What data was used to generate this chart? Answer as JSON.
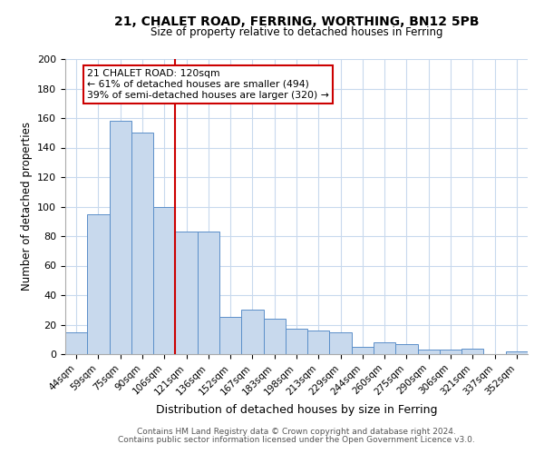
{
  "title1": "21, CHALET ROAD, FERRING, WORTHING, BN12 5PB",
  "title2": "Size of property relative to detached houses in Ferring",
  "xlabel": "Distribution of detached houses by size in Ferring",
  "ylabel": "Number of detached properties",
  "bar_labels": [
    "44sqm",
    "59sqm",
    "75sqm",
    "90sqm",
    "106sqm",
    "121sqm",
    "136sqm",
    "152sqm",
    "167sqm",
    "183sqm",
    "198sqm",
    "213sqm",
    "229sqm",
    "244sqm",
    "260sqm",
    "275sqm",
    "290sqm",
    "306sqm",
    "321sqm",
    "337sqm",
    "352sqm"
  ],
  "bar_values": [
    15,
    95,
    158,
    150,
    100,
    83,
    83,
    25,
    30,
    24,
    17,
    16,
    15,
    5,
    8,
    7,
    3,
    3,
    4,
    0,
    2
  ],
  "bar_color": "#c8d9ed",
  "bar_edge_color": "#5b8fc9",
  "vline_color": "#cc0000",
  "vline_index": 4.5,
  "annotation_title": "21 CHALET ROAD: 120sqm",
  "annotation_line1": "← 61% of detached houses are smaller (494)",
  "annotation_line2": "39% of semi-detached houses are larger (320) →",
  "annotation_box_color": "#cc0000",
  "annotation_bg": "#ffffff",
  "ylim": [
    0,
    200
  ],
  "yticks": [
    0,
    20,
    40,
    60,
    80,
    100,
    120,
    140,
    160,
    180,
    200
  ],
  "footer1": "Contains HM Land Registry data © Crown copyright and database right 2024.",
  "footer2": "Contains public sector information licensed under the Open Government Licence v3.0.",
  "bg_color": "#ffffff",
  "grid_color": "#c8d9ed"
}
